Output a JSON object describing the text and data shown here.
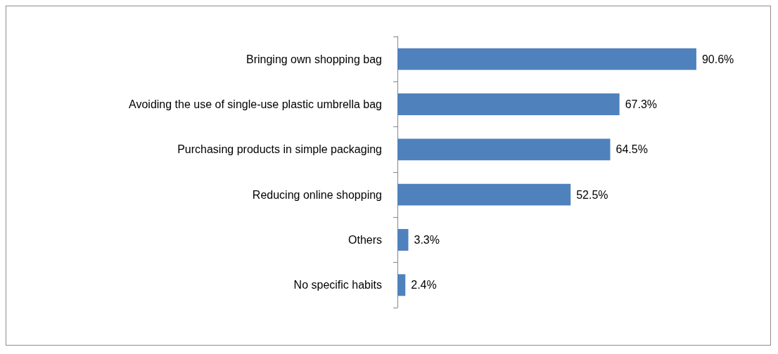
{
  "chart_data": {
    "type": "bar",
    "orientation": "horizontal",
    "categories": [
      "Bringing own shopping bag",
      "Avoiding the use of single-use plastic umbrella bag",
      "Purchasing products in simple packaging",
      "Reducing online shopping",
      "Others",
      "No specific habits"
    ],
    "values": [
      90.6,
      67.3,
      64.5,
      52.5,
      3.3,
      2.4
    ],
    "value_labels": [
      "90.6%",
      "67.3%",
      "64.5%",
      "52.5%",
      "3.3%",
      "2.4%"
    ],
    "color": "#4f81bd"
  }
}
